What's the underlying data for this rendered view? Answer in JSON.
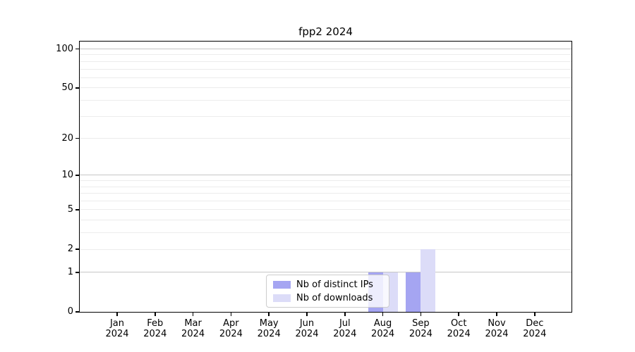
{
  "title": "fpp2 2024",
  "year": "2024",
  "months": [
    "Jan",
    "Feb",
    "Mar",
    "Apr",
    "May",
    "Jun",
    "Jul",
    "Aug",
    "Sep",
    "Oct",
    "Nov",
    "Dec"
  ],
  "colors": {
    "distinct_ips": "#a5a5f2",
    "downloads": "#dcdcf8",
    "grid_major": "#c6c6c6",
    "grid_minor": "#ececec",
    "spine": "#000000",
    "legend_border": "#cccccc"
  },
  "legend": {
    "items": [
      {
        "label": "Nb of distinct IPs",
        "color": "#a5a5f2"
      },
      {
        "label": "Nb of downloads",
        "color": "#dcdcf8"
      }
    ]
  },
  "chart_data": {
    "type": "bar",
    "title": "fpp2 2024",
    "categories": [
      "Jan 2024",
      "Feb 2024",
      "Mar 2024",
      "Apr 2024",
      "May 2024",
      "Jun 2024",
      "Jul 2024",
      "Aug 2024",
      "Sep 2024",
      "Oct 2024",
      "Nov 2024",
      "Dec 2024"
    ],
    "series": [
      {
        "name": "Nb of distinct IPs",
        "color": "#a5a5f2",
        "values": [
          0,
          0,
          0,
          0,
          0,
          0,
          0,
          1,
          1,
          0,
          0,
          0
        ]
      },
      {
        "name": "Nb of downloads",
        "color": "#dcdcf8",
        "values": [
          0,
          0,
          0,
          0,
          0,
          0,
          0,
          1,
          2,
          0,
          0,
          0
        ]
      }
    ],
    "yscale": "log1p",
    "ylim": [
      0,
      114
    ],
    "y_tick_values": [
      0,
      1,
      2,
      5,
      10,
      20,
      50,
      100
    ],
    "y_major_gridline_values": [
      1,
      10,
      100
    ],
    "y_minor_gridline_values": [
      2,
      3,
      4,
      5,
      6,
      7,
      8,
      9,
      20,
      30,
      40,
      50,
      60,
      70,
      80,
      90
    ],
    "grid": "horizontal",
    "legend_position": "lower center",
    "xlabel": "",
    "ylabel": ""
  }
}
